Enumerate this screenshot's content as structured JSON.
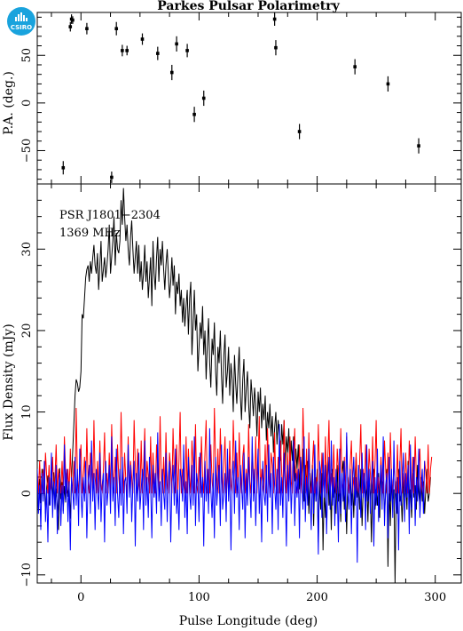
{
  "logo": {
    "text": "CSIRO",
    "color": "#19a3dd"
  },
  "chart_data": [
    {
      "type": "scatter",
      "title": "Parkes Pulsar Polarimetry",
      "ylabel": "P.A. (deg.)",
      "xlabel": "",
      "xlim": [
        -37,
        322
      ],
      "ylim": [
        -85,
        95
      ],
      "yticks": [
        -50,
        0,
        50
      ],
      "x": [
        -15,
        -9,
        -8,
        -7,
        5,
        26,
        30,
        35,
        39,
        52,
        65,
        77,
        81,
        90,
        96,
        104,
        164,
        165,
        185,
        232,
        260,
        286
      ],
      "y": [
        -68,
        80,
        88,
        87,
        78,
        -78,
        78,
        55,
        55,
        67,
        52,
        32,
        62,
        55,
        -12,
        5,
        88,
        58,
        -30,
        38,
        20,
        -45
      ],
      "yerr": [
        7,
        5,
        5,
        4,
        6,
        6,
        7,
        6,
        5,
        6,
        7,
        8,
        8,
        7,
        8,
        8,
        7,
        8,
        8,
        8,
        8,
        8
      ],
      "color": "#000000"
    },
    {
      "type": "line",
      "xlabel": "Pulse Longitude (deg)",
      "ylabel": "Flux Density (mJy)",
      "xlim": [
        -37,
        322
      ],
      "ylim": [
        -11,
        38
      ],
      "xticks": [
        0,
        100,
        200,
        300
      ],
      "yticks": [
        -10,
        0,
        10,
        20,
        30
      ],
      "annotations": [
        "PSR J1801−2304",
        "1369 MHz"
      ],
      "sample_step_deg": 1,
      "series": [
        {
          "color": "#000000",
          "values": [
            -2.1,
            0.5,
            1.8,
            -1.2,
            3.0,
            -0.3,
            1.1,
            -2.5,
            0.8,
            2.2,
            -1.5,
            0.4,
            1.9,
            -0.8,
            2.6,
            -1.9,
            0.6,
            -1.6,
            -4.5,
            3.1,
            -0.7,
            1.4,
            -2.2,
            0.9,
            -1.1,
            2.5,
            -0.4,
            0.9,
            -3.1,
            1.7,
            5.0,
            8.5,
            12.0,
            14.0,
            13.5,
            12.5,
            13.0,
            15.0,
            22.0,
            21.5,
            24.0,
            26.5,
            27.5,
            28.0,
            26.0,
            28.5,
            27.0,
            29.0,
            30.5,
            28.0,
            27.0,
            29.5,
            25.0,
            28.0,
            31.0,
            26.0,
            27.5,
            29.0,
            26.5,
            28.0,
            30.0,
            33.0,
            27.0,
            29.0,
            31.0,
            34.0,
            28.0,
            32.0,
            30.0,
            29.5,
            31.0,
            36.0,
            33.0,
            37.5,
            34.0,
            31.0,
            33.0,
            30.0,
            28.0,
            31.5,
            33.5,
            30.0,
            27.0,
            29.0,
            31.0,
            27.0,
            30.5,
            26.0,
            28.5,
            25.0,
            27.0,
            30.5,
            26.0,
            28.5,
            24.0,
            26.5,
            29.0,
            23.0,
            31.0,
            27.0,
            25.0,
            29.0,
            31.5,
            26.0,
            30.0,
            28.0,
            31.0,
            27.5,
            25.0,
            28.0,
            30.0,
            27.0,
            24.0,
            26.0,
            29.0,
            25.5,
            28.0,
            22.0,
            26.0,
            24.5,
            27.0,
            23.0,
            25.0,
            21.0,
            24.0,
            20.5,
            23.0,
            25.0,
            19.5,
            24.0,
            26.0,
            17.0,
            21.0,
            25.0,
            20.0,
            22.0,
            15.0,
            18.0,
            21.0,
            19.0,
            23.0,
            17.0,
            20.0,
            14.0,
            18.0,
            21.5,
            16.0,
            13.0,
            19.0,
            17.0,
            21.0,
            15.0,
            12.0,
            18.0,
            16.0,
            20.0,
            14.5,
            11.0,
            17.0,
            19.5,
            13.0,
            15.0,
            18.0,
            12.0,
            16.0,
            14.0,
            10.0,
            17.0,
            13.5,
            11.0,
            15.0,
            18.0,
            12.0,
            9.0,
            14.0,
            16.5,
            10.0,
            13.0,
            15.0,
            11.0,
            8.0,
            14.0,
            12.0,
            9.5,
            13.0,
            11.0,
            7.0,
            12.5,
            10.0,
            13.0,
            8.0,
            11.0,
            9.0,
            12.0,
            6.5,
            10.0,
            8.0,
            11.0,
            7.0,
            9.5,
            5.0,
            8.0,
            10.0,
            6.0,
            9.0,
            7.0,
            4.0,
            8.5,
            6.0,
            9.0,
            3.0,
            7.0,
            5.0,
            8.0,
            2.5,
            6.5,
            4.0,
            7.0,
            1.5,
            5.5,
            3.0,
            6.0,
            0.5,
            4.5,
            2.0,
            5.5,
            -1.0,
            3.5,
            1.0,
            4.0,
            -2.5,
            2.5,
            0.0,
            3.5,
            -4.0,
            2.0,
            -1.0,
            3.0,
            -6.0,
            1.5,
            -2.0,
            2.5,
            -7.0,
            0.5,
            -3.0,
            1.5,
            4.0,
            -1.5,
            2.0,
            -4.5,
            3.0,
            -0.5,
            1.0,
            -2.5,
            3.5,
            -1.0,
            0.5,
            -3.5,
            2.5,
            4.0,
            -2.0,
            1.0,
            -5.0,
            2.0,
            0.0,
            3.0,
            -1.5,
            1.5,
            -3.0,
            2.0,
            4.5,
            -0.5,
            1.0,
            -2.0,
            3.0,
            -4.0,
            0.5,
            2.5,
            -1.0,
            1.5,
            -3.5,
            2.0,
            0.0,
            -6.0,
            1.0,
            3.0,
            -2.0,
            0.5,
            -1.5,
            2.5,
            -3.0,
            4.0,
            -0.5,
            1.5,
            -2.5,
            0.0,
            3.0,
            -9.0,
            1.0,
            -4.0,
            2.0,
            -1.0,
            0.5,
            -11.0,
            1.5,
            -2.5,
            3.0,
            -1.0,
            0.0,
            -3.5,
            2.0,
            -0.5,
            1.5,
            -2.0,
            4.0,
            -1.5,
            0.5,
            -3.0,
            2.5,
            -0.5,
            1.0,
            -2.0,
            3.5,
            0.0,
            -1.5,
            2.0,
            -1.0,
            1.5,
            -2.5,
            0.5,
            3.0,
            -1.0,
            0.0,
            2.0
          ]
        },
        {
          "color": "#ff0000",
          "values": [
            2.5,
            0.0,
            4.0,
            0.0,
            1.5,
            3.0,
            0.0,
            5.0,
            2.0,
            0.0,
            3.5,
            0.0,
            1.0,
            4.5,
            0.0,
            2.0,
            6.0,
            0.0,
            3.0,
            1.0,
            0.0,
            4.0,
            0.0,
            7.0,
            2.5,
            0.0,
            3.0,
            0.0,
            5.5,
            1.0,
            0.0,
            4.0,
            0.0,
            10.5,
            2.0,
            0.0,
            3.5,
            6.0,
            0.0,
            2.0,
            4.5,
            0.0,
            8.0,
            1.5,
            0.0,
            5.0,
            3.0,
            0.0,
            9.0,
            2.0,
            0.0,
            4.0,
            0.0,
            6.5,
            1.0,
            0.0,
            3.0,
            7.5,
            0.0,
            2.5,
            0.0,
            5.0,
            0.0,
            8.5,
            3.0,
            0.0,
            4.5,
            0.0,
            6.0,
            2.0,
            0.0,
            10.0,
            3.0,
            0.0,
            5.0,
            1.5,
            0.0,
            7.0,
            0.0,
            4.0,
            2.0,
            0.0,
            9.0,
            3.5,
            0.0,
            5.5,
            1.0,
            0.0,
            6.5,
            0.0,
            3.0,
            8.0,
            0.0,
            4.0,
            2.0,
            0.0,
            7.0,
            0.0,
            5.0,
            1.5,
            0.0,
            6.0,
            3.0,
            0.0,
            9.5,
            2.0,
            0.0,
            4.5,
            0.0,
            7.5,
            1.0,
            0.0,
            5.0,
            3.0,
            0.0,
            8.0,
            2.5,
            0.0,
            6.0,
            0.0,
            4.0,
            10.0,
            0.0,
            3.0,
            1.0,
            0.0,
            7.0,
            0.0,
            5.5,
            2.0,
            0.0,
            6.5,
            3.5,
            0.0,
            8.5,
            1.0,
            0.0,
            4.5,
            0.0,
            7.0,
            2.0,
            0.0,
            5.0,
            9.0,
            0.0,
            3.0,
            0.0,
            6.0,
            1.5,
            0.0,
            10.5,
            4.0,
            0.0,
            5.5,
            0.0,
            8.0,
            2.5,
            0.0,
            4.0,
            7.0,
            0.0,
            3.0,
            0.0,
            6.5,
            1.0,
            0.0,
            9.0,
            3.5,
            0.0,
            5.0,
            0.0,
            7.5,
            2.0,
            0.0,
            4.5,
            6.0,
            0.0,
            3.0,
            0.0,
            8.5,
            1.5,
            0.0,
            5.5,
            2.5,
            0.0,
            7.0,
            0.0,
            4.0,
            9.5,
            0.0,
            3.0,
            1.0,
            0.0,
            6.0,
            0.0,
            8.0,
            2.0,
            0.0,
            5.0,
            3.5,
            0.0,
            7.5,
            1.0,
            0.0,
            4.5,
            0.0,
            6.5,
            2.5,
            0.0,
            9.0,
            3.0,
            0.0,
            5.0,
            0.0,
            7.0,
            1.5,
            0.0,
            4.0,
            8.0,
            0.0,
            3.0,
            0.0,
            6.0,
            2.0,
            0.0,
            10.5,
            4.5,
            0.0,
            5.5,
            0.0,
            7.5,
            1.0,
            0.0,
            3.5,
            6.5,
            0.0,
            2.0,
            0.0,
            8.5,
            3.0,
            0.0,
            5.0,
            1.5,
            0.0,
            7.0,
            0.0,
            4.0,
            9.0,
            0.0,
            2.5,
            0.0,
            6.0,
            1.0,
            0.0,
            5.5,
            3.0,
            0.0,
            8.0,
            2.0,
            0.0,
            4.5,
            0.0,
            7.0,
            1.5,
            0.0,
            3.5,
            6.5,
            0.0,
            2.0,
            0.0,
            5.0,
            0.5,
            0.0,
            4.0,
            8.5,
            0.0,
            3.0,
            0.0,
            6.0,
            1.0,
            0.0,
            5.5,
            2.5,
            0.0,
            7.0,
            0.0,
            3.5,
            9.0,
            0.0,
            2.0,
            0.0,
            4.5,
            1.5,
            0.0,
            6.5,
            3.0,
            0.0,
            5.0,
            0.0,
            7.5,
            2.0,
            0.0,
            4.0,
            1.0,
            0.0,
            6.0,
            0.0,
            3.5,
            8.0,
            0.0,
            2.5,
            0.0,
            5.0,
            1.0,
            0.0,
            6.5,
            3.0,
            0.0,
            4.5,
            0.0,
            7.0,
            2.0,
            0.0,
            3.0,
            5.5,
            0.0,
            1.5,
            0.0,
            4.0,
            2.5,
            0.0,
            6.0,
            0.0,
            3.0,
            4.5
          ]
        },
        {
          "color": "#0000ff",
          "values": [
            3.0,
            -2.5,
            1.0,
            -4.5,
            2.5,
            -1.0,
            4.0,
            -3.5,
            0.5,
            -6.0,
            2.0,
            -1.5,
            5.0,
            -3.0,
            1.5,
            -2.0,
            3.5,
            -5.0,
            0.0,
            2.5,
            -4.0,
            1.0,
            -2.5,
            6.0,
            -1.0,
            3.0,
            -3.5,
            1.5,
            -7.0,
            2.0,
            0.5,
            -2.0,
            4.5,
            -1.5,
            3.0,
            -4.0,
            5.5,
            0.0,
            -3.0,
            2.0,
            -1.0,
            4.0,
            -5.5,
            1.5,
            3.5,
            -2.5,
            6.5,
            -1.0,
            2.5,
            -4.5,
            3.0,
            0.5,
            -2.0,
            5.0,
            -3.5,
            1.0,
            2.5,
            -6.0,
            4.0,
            -1.5,
            0.5,
            3.5,
            -2.5,
            7.0,
            -1.0,
            2.0,
            -4.0,
            5.5,
            0.0,
            -3.0,
            3.0,
            -1.5,
            4.5,
            -5.0,
            1.5,
            2.0,
            -2.5,
            6.0,
            -0.5,
            3.5,
            -3.5,
            1.0,
            4.0,
            -6.5,
            2.5,
            -1.0,
            5.0,
            -2.0,
            0.5,
            3.0,
            -4.5,
            6.5,
            -1.5,
            2.0,
            -3.0,
            4.5,
            1.0,
            -5.5,
            3.5,
            -0.5,
            2.5,
            -2.5,
            7.5,
            -1.0,
            1.5,
            -4.0,
            3.0,
            0.0,
            -2.0,
            5.0,
            -3.5,
            2.0,
            4.0,
            -6.0,
            1.0,
            3.5,
            -1.5,
            5.5,
            -2.5,
            0.5,
            -4.5,
            3.0,
            2.0,
            -1.0,
            6.0,
            -3.0,
            1.5,
            -5.0,
            4.5,
            0.0,
            -2.0,
            3.5,
            -1.5,
            7.0,
            -4.0,
            2.5,
            1.0,
            -3.5,
            5.0,
            -0.5,
            2.0,
            -6.5,
            4.0,
            -1.0,
            3.0,
            -2.5,
            8.0,
            0.5,
            -3.0,
            2.5,
            -5.5,
            4.5,
            -1.5,
            1.0,
            3.5,
            -4.0,
            6.0,
            -2.0,
            0.0,
            2.5,
            -3.5,
            5.5,
            -1.0,
            3.0,
            -7.0,
            1.5,
            4.0,
            -2.5,
            6.5,
            -0.5,
            2.0,
            -4.5,
            3.5,
            1.0,
            -2.0,
            5.0,
            -5.5,
            2.5,
            -1.5,
            4.5,
            0.5,
            -3.0,
            7.0,
            -1.0,
            3.0,
            -4.0,
            1.5,
            5.5,
            -2.5,
            2.0,
            -6.0,
            4.0,
            0.0,
            -1.5,
            3.5,
            -3.5,
            6.0,
            -0.5,
            2.5,
            -5.0,
            4.5,
            1.0,
            -2.0,
            3.0,
            -4.5,
            8.5,
            -1.5,
            2.0,
            -3.0,
            5.0,
            0.5,
            -6.5,
            3.5,
            -1.0,
            4.0,
            -2.5,
            1.5,
            6.5,
            -4.0,
            2.5,
            -0.5,
            3.0,
            -5.5,
            4.5,
            1.0,
            -2.0,
            7.0,
            -3.5,
            2.0,
            -1.5,
            5.5,
            0.0,
            -4.5,
            3.0,
            -2.5,
            6.0,
            -1.0,
            1.5,
            -7.5,
            4.0,
            2.5,
            -3.0,
            5.0,
            -0.5,
            3.5,
            -5.0,
            1.0,
            4.5,
            -2.0,
            6.5,
            -1.5,
            2.0,
            -4.0,
            3.0,
            0.5,
            -6.0,
            5.5,
            -2.5,
            2.5,
            -1.0,
            4.0,
            -3.5,
            7.5,
            0.0,
            -2.0,
            3.0,
            -5.0,
            1.5,
            4.5,
            -1.5,
            2.0,
            -8.5,
            3.5,
            1.0,
            -3.0,
            5.0,
            -0.5,
            2.5,
            -4.5,
            6.0,
            -1.0,
            3.0,
            -2.5,
            1.5,
            4.0,
            -6.5,
            2.0,
            -1.5,
            5.5,
            -3.5,
            0.5,
            3.5,
            -2.0,
            7.0,
            -4.0,
            1.0,
            2.5,
            -5.5,
            4.5,
            -1.0,
            3.0,
            -3.0,
            6.5,
            0.0,
            -2.5,
            2.0,
            -7.0,
            4.0,
            -1.5,
            1.5,
            5.0,
            -3.5,
            2.5,
            -0.5,
            3.5,
            -5.0,
            6.0,
            -2.0,
            1.0,
            4.5,
            -4.0,
            2.0,
            -1.0,
            5.5,
            -3.0,
            0.5,
            3.0,
            -2.5,
            4.0
          ]
        }
      ]
    }
  ]
}
